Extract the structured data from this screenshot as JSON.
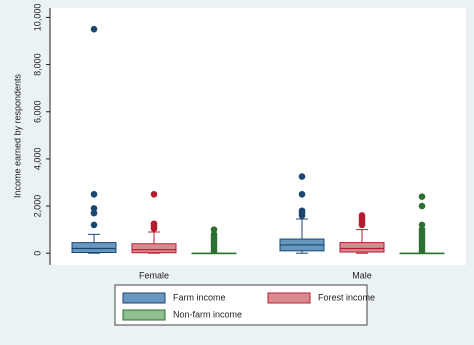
{
  "chart_data": {
    "type": "box",
    "ylabel": "Income earned by respondents",
    "categories": [
      "Female",
      "Male"
    ],
    "ylim": [
      -500,
      10400
    ],
    "yticks": [
      0,
      {
        "value": 2000,
        "label": "2,000"
      },
      {
        "value": 4000,
        "label": "4,000"
      },
      {
        "value": 6000,
        "label": "6,000"
      },
      {
        "value": 8000,
        "label": "8,000"
      },
      {
        "value": 10000,
        "label": "10,000"
      }
    ],
    "series": [
      {
        "name": "Farm income",
        "color": "#6a97c0",
        "edge": "#1a476f",
        "boxes": [
          {
            "min": 0,
            "q1": 30,
            "median": 200,
            "q3": 450,
            "max": 800,
            "outliers": [
              1200,
              1700,
              1900,
              2500,
              9500
            ]
          },
          {
            "min": 0,
            "q1": 100,
            "median": 350,
            "q3": 600,
            "max": 1450,
            "outliers": [
              1600,
              1700,
              1800,
              2500,
              3250
            ]
          }
        ]
      },
      {
        "name": "Forest income",
        "color": "#d98a90",
        "edge": "#b51d2e",
        "boxes": [
          {
            "min": 0,
            "q1": 20,
            "median": 150,
            "q3": 400,
            "max": 900,
            "outliers": [
              1050,
              1150,
              1250,
              2500
            ]
          },
          {
            "min": 0,
            "q1": 50,
            "median": 200,
            "q3": 450,
            "max": 1000,
            "outliers": [
              1200,
              1300,
              1400,
              1500,
              1600
            ]
          }
        ]
      },
      {
        "name": "Non-farm income",
        "color": "#8fbf8f",
        "edge": "#2e7032",
        "boxes": [
          {
            "min": 0,
            "q1": 0,
            "median": 0,
            "q3": 0,
            "max": 0,
            "outliers": [
              100,
              200,
              300,
              400,
              500,
              600,
              700,
              800,
              1000
            ]
          },
          {
            "min": 0,
            "q1": 0,
            "median": 0,
            "q3": 0,
            "max": 0,
            "outliers": [
              100,
              200,
              300,
              400,
              500,
              600,
              700,
              800,
              900,
              1000,
              1200,
              2000,
              2400
            ]
          }
        ]
      }
    ]
  }
}
